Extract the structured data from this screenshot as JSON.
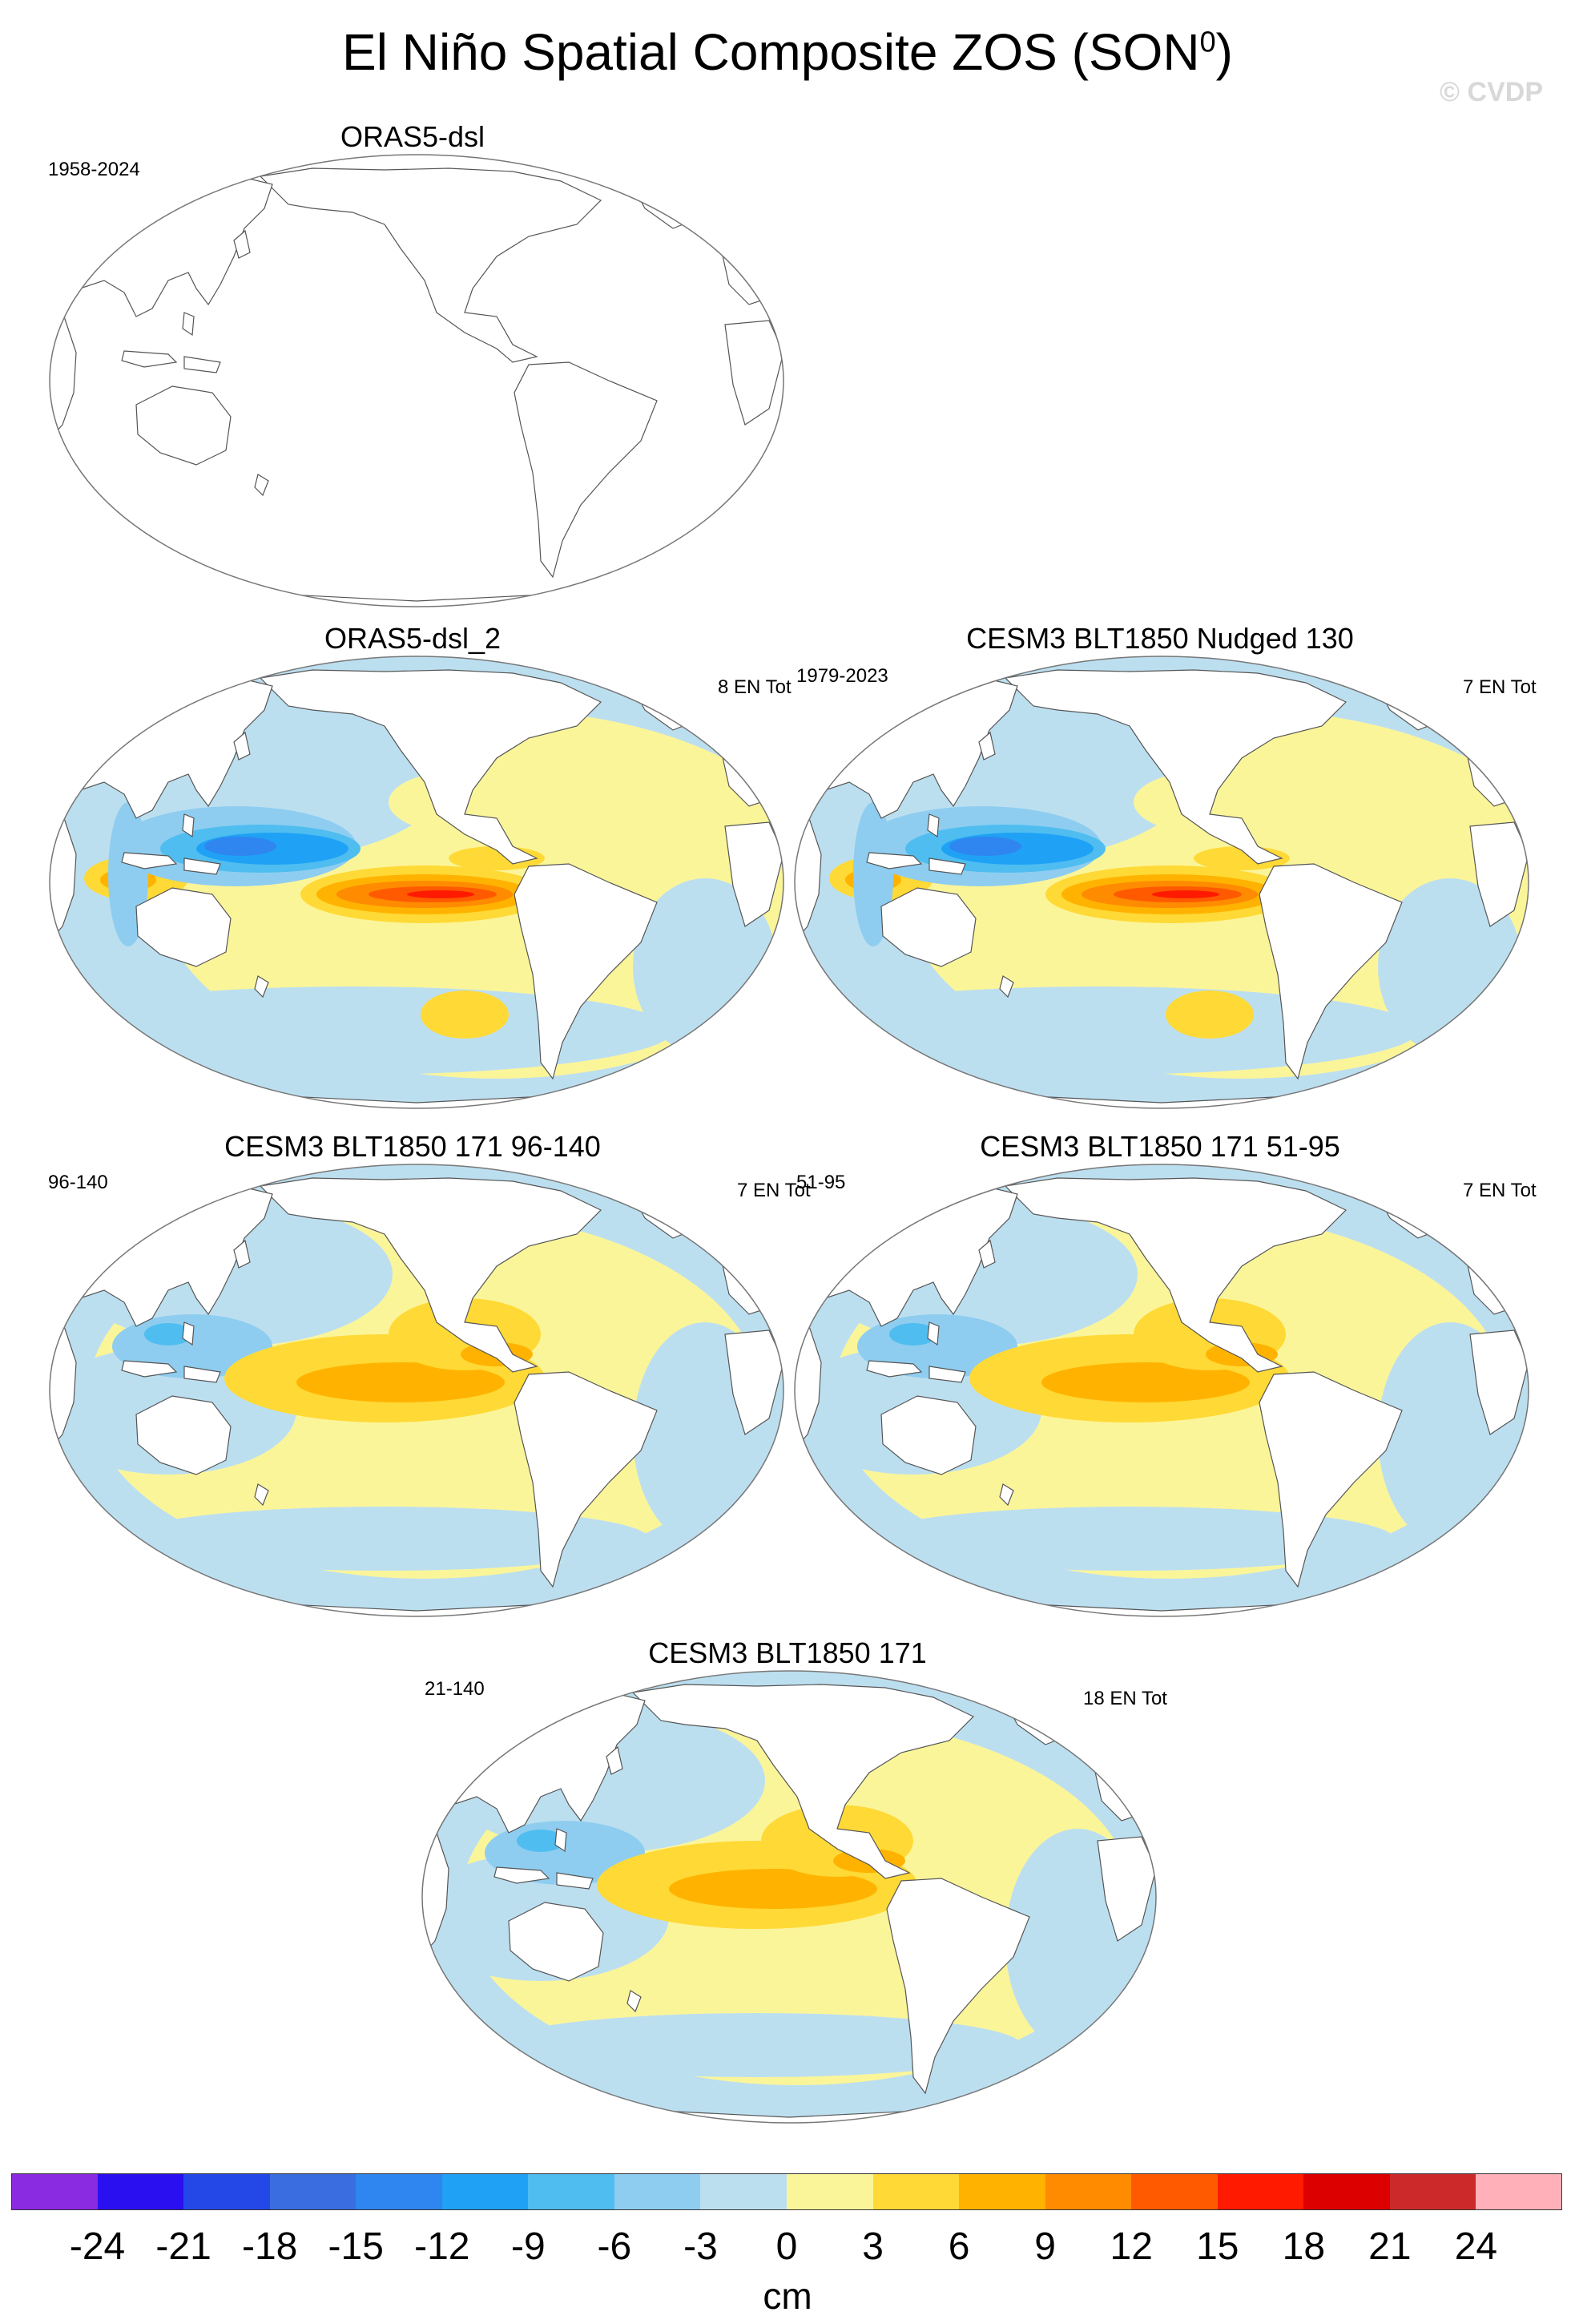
{
  "figure": {
    "title": "El Niño Spatial Composite ZOS (SON",
    "title_superscript": "0",
    "title_close": ")",
    "watermark": "© CVDP"
  },
  "panels": [
    {
      "title": "ORAS5-dsl",
      "left_note": "1958-2024",
      "right_note": "",
      "pattern": "none"
    },
    {
      "title": "ORAS5-dsl_2",
      "left_note": "",
      "right_note": "8 EN Tot",
      "pattern": "strong"
    },
    {
      "title": "CESM3 BLT1850 Nudged 130",
      "left_note": "1979-2023",
      "right_note": "7 EN Tot",
      "pattern": "strong"
    },
    {
      "title": "CESM3 BLT1850 171 96-140",
      "left_note": "96-140",
      "right_note": "7 EN Tot",
      "pattern": "moderate"
    },
    {
      "title": "CESM3 BLT1850 171 51-95",
      "left_note": "51-95",
      "right_note": "7 EN Tot",
      "pattern": "moderate"
    },
    {
      "title": "CESM3 BLT1850 171",
      "left_note": "21-140",
      "right_note": "18 EN Tot",
      "pattern": "moderate"
    }
  ],
  "colorbar": {
    "unit": "cm",
    "labels": [
      "-24",
      "-21",
      "-18",
      "-15",
      "-12",
      "-9",
      "-6",
      "-3",
      "0",
      "3",
      "6",
      "9",
      "12",
      "15",
      "18",
      "21",
      "24"
    ],
    "colors": [
      "#8a2be2",
      "#2a10f0",
      "#2448e8",
      "#3a6de0",
      "#2f86f0",
      "#1fa2f5",
      "#4fbdf0",
      "#8ecdf0",
      "#bcdff0",
      "#fbf59a",
      "#ffd935",
      "#ffb300",
      "#ff8b00",
      "#ff5a00",
      "#ff1a00",
      "#dd0000",
      "#cc2a2a",
      "#ffb0b8"
    ]
  }
}
